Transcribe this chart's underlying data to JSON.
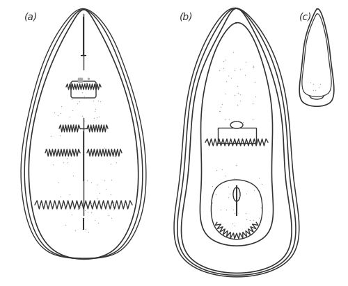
{
  "bg_color": "#ffffff",
  "line_color": "#333333",
  "dot_color": "#aaaaaa",
  "label_a": "(a)",
  "label_b": "(b)",
  "label_c": "(c)",
  "label_fontsize": 10,
  "fig_width": 5.0,
  "fig_height": 4.12,
  "dpi": 100
}
